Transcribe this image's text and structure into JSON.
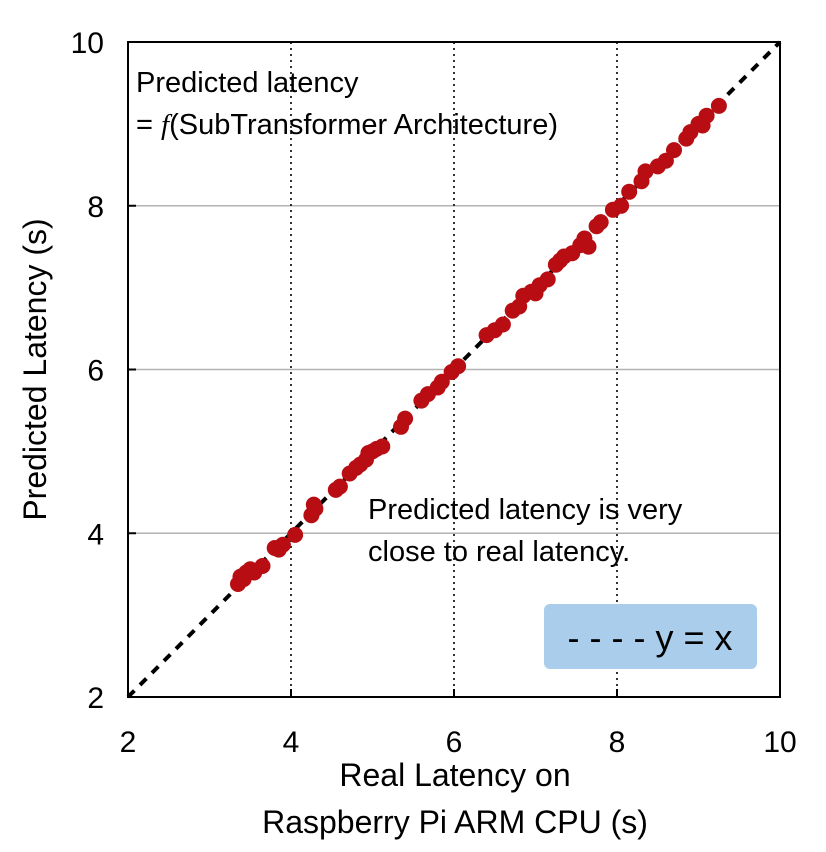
{
  "chart_data": {
    "type": "scatter",
    "title": "",
    "xlabel_lines": [
      "Real Latency on",
      "Raspberry Pi ARM CPU (s)"
    ],
    "ylabel": "Predicted Latency (s)",
    "xlim": [
      2,
      10
    ],
    "ylim": [
      2,
      10
    ],
    "xticks": [
      "2",
      "4",
      "6",
      "8",
      "10"
    ],
    "yticks": [
      "2",
      "4",
      "6",
      "8",
      "10"
    ],
    "x_gridlines": [
      4,
      6,
      8
    ],
    "y_gridlines": [
      4,
      6,
      8
    ],
    "annotation_top": {
      "line1": "Predicted latency",
      "line2_prefix": "= ",
      "line2_func": "f",
      "line2_suffix": "(SubTransformer Architecture)"
    },
    "annotation_mid": {
      "line1": "Predicted latency is very",
      "line2": "close to real latency."
    },
    "legend": {
      "label": "- - - - y = x"
    },
    "colors": {
      "point": "#b80d12",
      "legend_bg": "#a9cdeb",
      "reference_line": "#000000",
      "grid": "#b3b3b3"
    },
    "series": [
      {
        "name": "SubTransformers",
        "points": [
          [
            3.35,
            3.38
          ],
          [
            3.38,
            3.47
          ],
          [
            3.42,
            3.44
          ],
          [
            3.45,
            3.52
          ],
          [
            3.5,
            3.56
          ],
          [
            3.55,
            3.52
          ],
          [
            3.65,
            3.6
          ],
          [
            3.8,
            3.82
          ],
          [
            3.85,
            3.8
          ],
          [
            3.9,
            3.86
          ],
          [
            4.05,
            3.98
          ],
          [
            4.25,
            4.22
          ],
          [
            4.28,
            4.35
          ],
          [
            4.3,
            4.3
          ],
          [
            4.55,
            4.53
          ],
          [
            4.6,
            4.57
          ],
          [
            4.72,
            4.73
          ],
          [
            4.8,
            4.8
          ],
          [
            4.85,
            4.84
          ],
          [
            4.92,
            4.9
          ],
          [
            4.95,
            4.98
          ],
          [
            5.0,
            5.0
          ],
          [
            5.05,
            5.03
          ],
          [
            5.12,
            5.06
          ],
          [
            5.35,
            5.3
          ],
          [
            5.4,
            5.4
          ],
          [
            5.6,
            5.62
          ],
          [
            5.68,
            5.7
          ],
          [
            5.8,
            5.78
          ],
          [
            5.85,
            5.85
          ],
          [
            5.97,
            5.97
          ],
          [
            6.05,
            6.04
          ],
          [
            6.4,
            6.42
          ],
          [
            6.5,
            6.48
          ],
          [
            6.6,
            6.55
          ],
          [
            6.72,
            6.72
          ],
          [
            6.8,
            6.77
          ],
          [
            6.85,
            6.9
          ],
          [
            6.95,
            6.95
          ],
          [
            7.0,
            6.93
          ],
          [
            7.05,
            7.03
          ],
          [
            7.15,
            7.1
          ],
          [
            7.25,
            7.28
          ],
          [
            7.3,
            7.33
          ],
          [
            7.35,
            7.38
          ],
          [
            7.45,
            7.42
          ],
          [
            7.55,
            7.52
          ],
          [
            7.6,
            7.6
          ],
          [
            7.65,
            7.5
          ],
          [
            7.75,
            7.75
          ],
          [
            7.8,
            7.8
          ],
          [
            7.95,
            7.95
          ],
          [
            8.05,
            8.0
          ],
          [
            8.15,
            8.17
          ],
          [
            8.3,
            8.3
          ],
          [
            8.35,
            8.42
          ],
          [
            8.5,
            8.48
          ],
          [
            8.6,
            8.55
          ],
          [
            8.7,
            8.68
          ],
          [
            8.85,
            8.82
          ],
          [
            8.9,
            8.9
          ],
          [
            9.0,
            9.0
          ],
          [
            9.05,
            8.98
          ],
          [
            9.1,
            9.1
          ],
          [
            9.25,
            9.22
          ]
        ]
      }
    ]
  }
}
